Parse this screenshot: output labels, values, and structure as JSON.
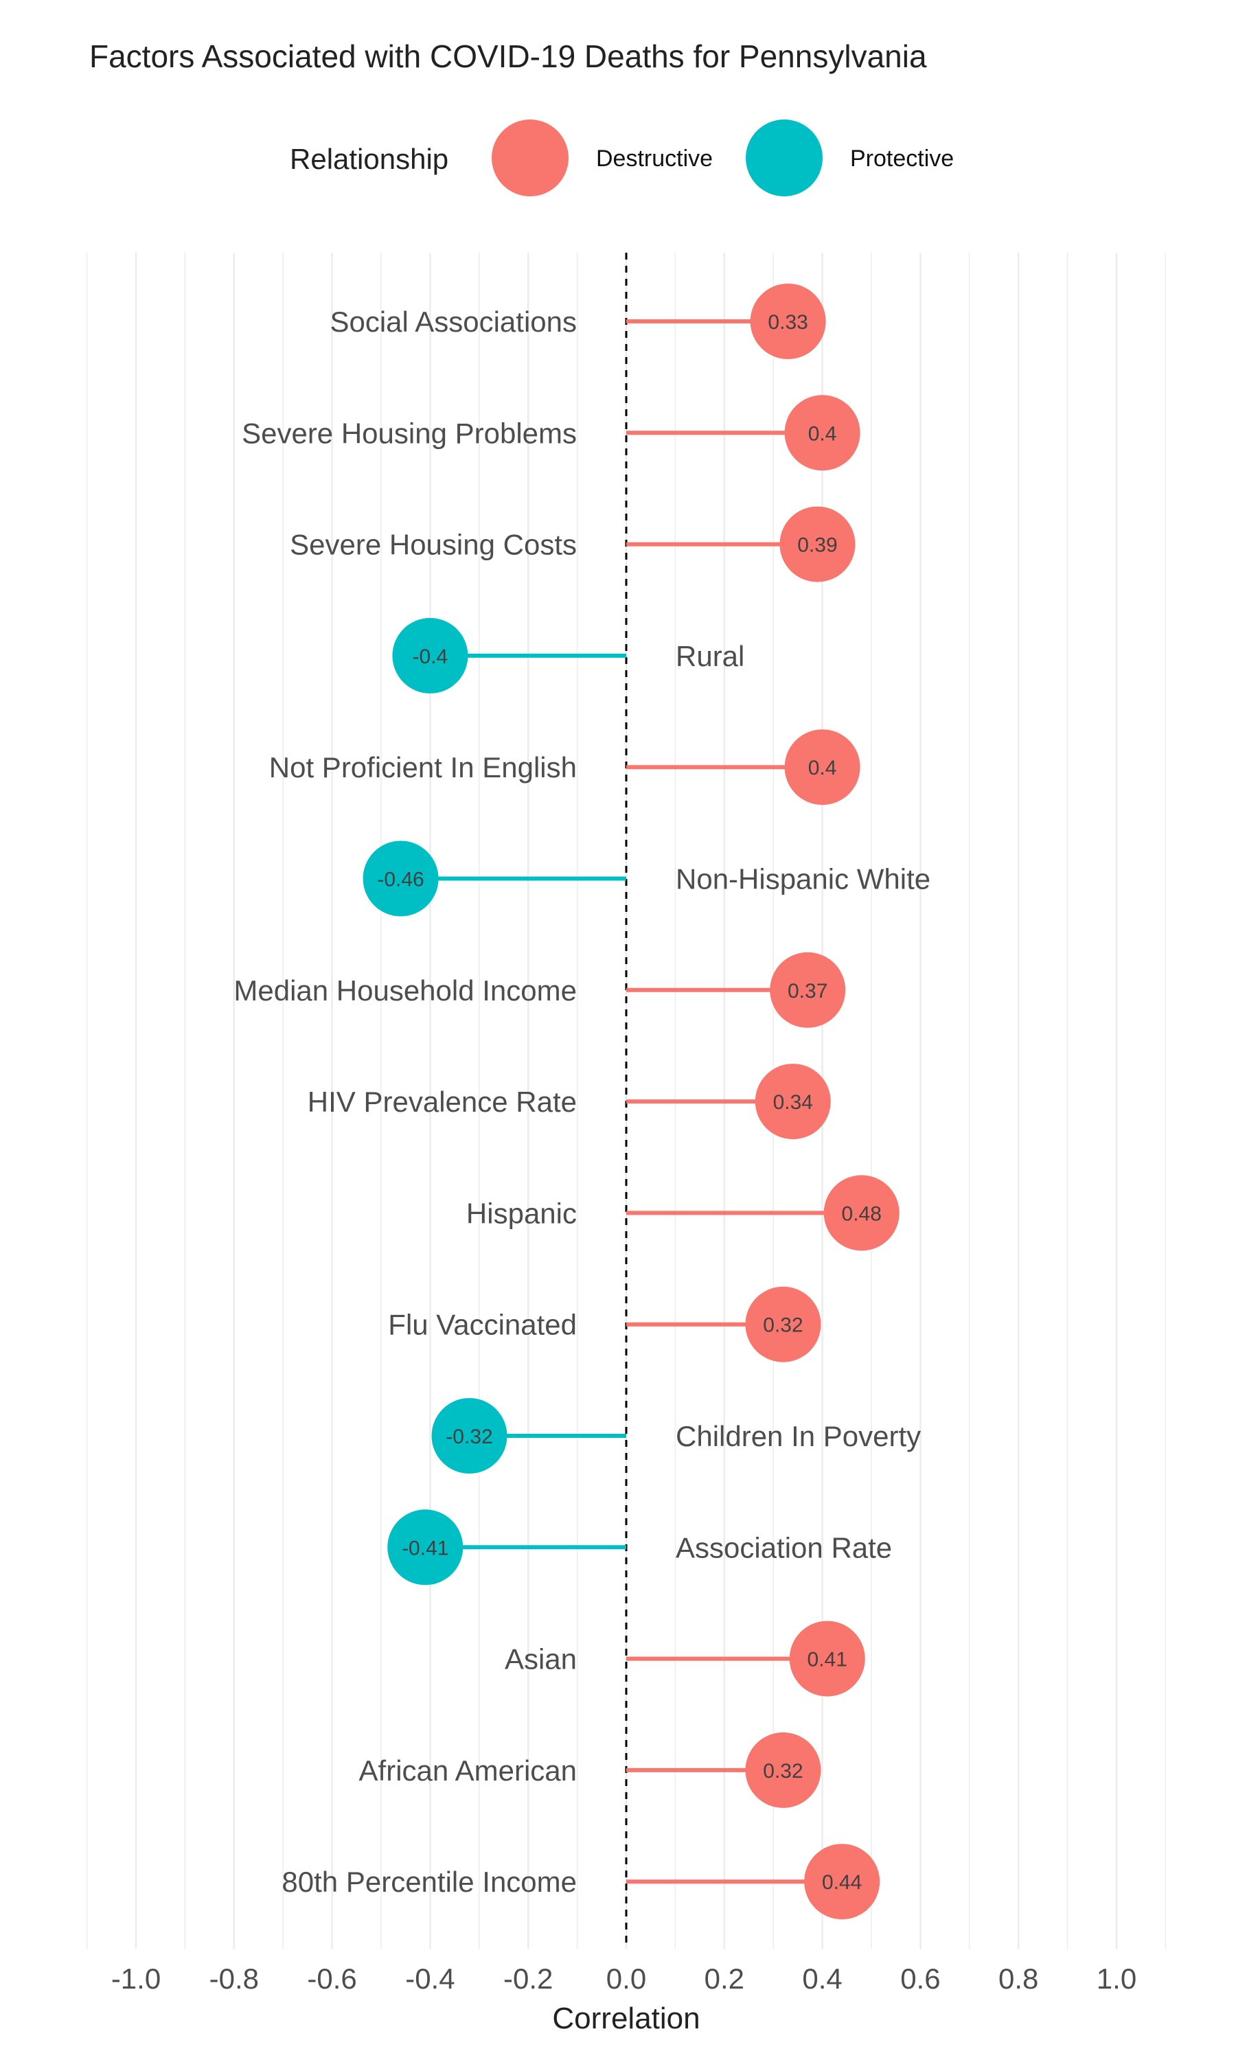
{
  "chart_data": {
    "type": "lollipop",
    "title": "Factors Associated with COVID-19 Deaths for Pennsylvania",
    "xlabel": "Correlation",
    "ylabel": "",
    "xlim": [
      -1.1,
      1.1
    ],
    "x_ticks": [
      -1.0,
      -0.8,
      -0.6,
      -0.4,
      -0.2,
      0.0,
      0.2,
      0.4,
      0.6,
      0.8,
      1.0
    ],
    "x_tick_labels": [
      "-1.0",
      "-0.8",
      "-0.6",
      "-0.4",
      "-0.2",
      "0.0",
      "0.2",
      "0.4",
      "0.6",
      "0.8",
      "1.0"
    ],
    "grid": true,
    "reference_line": 0,
    "legend": {
      "title": "Relationship",
      "placement": "top",
      "entries": [
        {
          "label": "Destructive",
          "color": "#F8766D"
        },
        {
          "label": "Protective",
          "color": "#00BFC4"
        }
      ]
    },
    "categories": [
      "Social Associations",
      "Severe Housing Problems",
      "Severe Housing Costs",
      "Rural",
      "Not Proficient In English",
      "Non-Hispanic White",
      "Median Household Income",
      "HIV Prevalence Rate",
      "Hispanic",
      "Flu Vaccinated",
      "Children In Poverty",
      "Association Rate",
      "Asian",
      "African American",
      "80th Percentile Income"
    ],
    "values": [
      0.33,
      0.4,
      0.39,
      -0.4,
      0.4,
      -0.46,
      0.37,
      0.34,
      0.48,
      0.32,
      -0.32,
      -0.41,
      0.41,
      0.32,
      0.44
    ],
    "value_labels": [
      "0.33",
      "0.4",
      "0.39",
      "-0.4",
      "0.4",
      "-0.46",
      "0.37",
      "0.34",
      "0.48",
      "0.32",
      "-0.32",
      "-0.41",
      "0.41",
      "0.32",
      "0.44"
    ],
    "relationship": [
      "Destructive",
      "Destructive",
      "Destructive",
      "Protective",
      "Destructive",
      "Protective",
      "Destructive",
      "Destructive",
      "Destructive",
      "Destructive",
      "Protective",
      "Protective",
      "Destructive",
      "Destructive",
      "Destructive"
    ]
  }
}
